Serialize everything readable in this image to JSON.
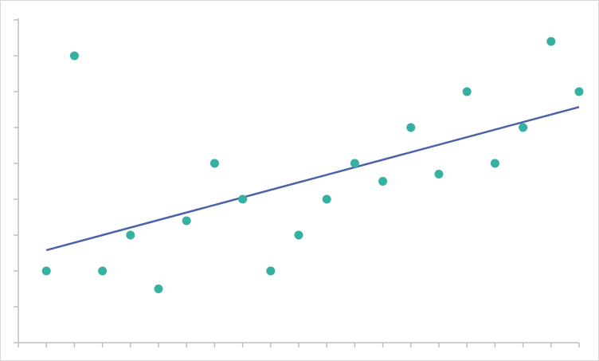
{
  "chart_data": {
    "type": "scatter",
    "series": [
      {
        "color": "#36b0a2",
        "x": [
          1,
          2,
          3,
          4,
          5,
          6,
          7,
          8,
          9,
          10,
          11,
          12,
          13,
          14,
          15,
          16,
          17,
          18,
          19,
          20
        ],
        "values": [
          2,
          8,
          2,
          3,
          1.5,
          3.4,
          5,
          4,
          2,
          3,
          4,
          5,
          4.5,
          6,
          4.7,
          7,
          5,
          6,
          8.4,
          7
        ]
      }
    ],
    "trendline": true,
    "trendline_color": "#4a62a8",
    "xlim": [
      0,
      20
    ],
    "xticks": [
      0,
      1,
      2,
      3,
      4,
      5,
      6,
      7,
      8,
      9,
      10,
      11,
      12,
      13,
      14,
      15,
      16,
      17,
      18,
      19,
      20
    ],
    "ylim": [
      0,
      9
    ],
    "yticks": [
      0,
      1,
      2,
      3,
      4,
      5,
      6,
      7,
      8,
      9
    ],
    "axis_color": "#bfbfbf"
  }
}
